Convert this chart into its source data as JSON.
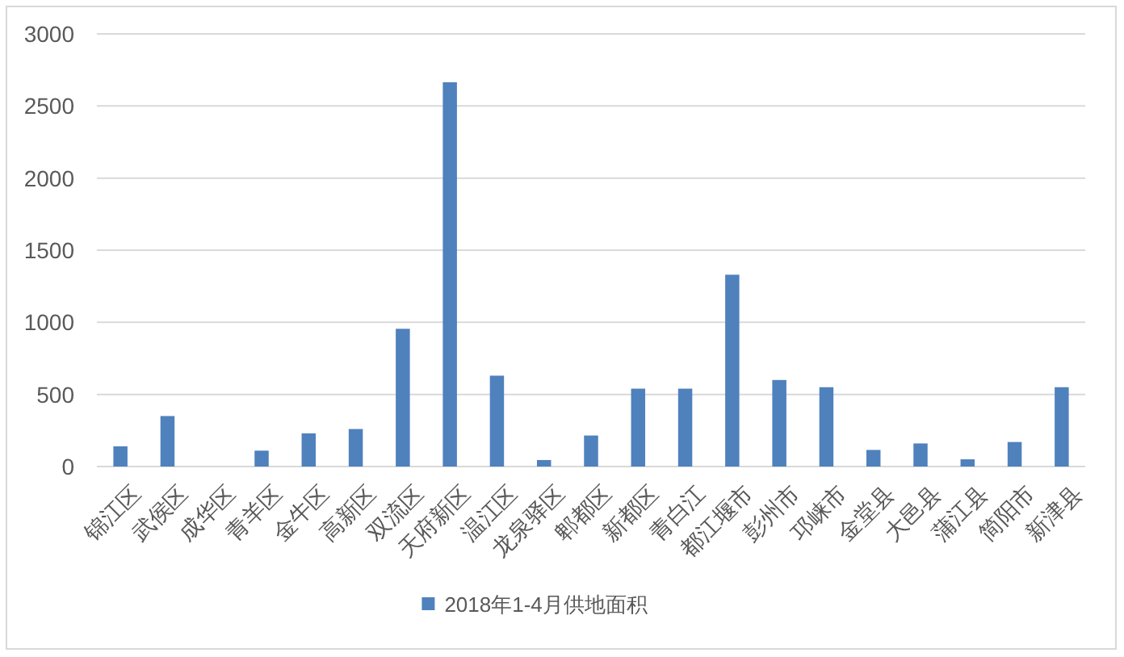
{
  "chart_data": {
    "type": "bar",
    "categories": [
      "锦江区",
      "武侯区",
      "成华区",
      "青羊区",
      "金牛区",
      "高新区",
      "双流区",
      "天府新区",
      "温江区",
      "龙泉驿区",
      "郫都区",
      "新都区",
      "青白江",
      "都江堰市",
      "彭州市",
      "邛崃市",
      "金堂县",
      "大邑县",
      "蒲江县",
      "简阳市",
      "新津县"
    ],
    "series": [
      {
        "name": "2018年1-4月供地面积",
        "color": "#4f81bd",
        "values": [
          140,
          350,
          0,
          110,
          230,
          260,
          955,
          2665,
          630,
          45,
          215,
          540,
          540,
          1330,
          600,
          550,
          115,
          160,
          50,
          170,
          550
        ]
      }
    ],
    "ylim": [
      0,
      3000
    ],
    "yticks": [
      0,
      500,
      1000,
      1500,
      2000,
      2500,
      3000
    ],
    "grid": "y",
    "legend": "bottom"
  }
}
